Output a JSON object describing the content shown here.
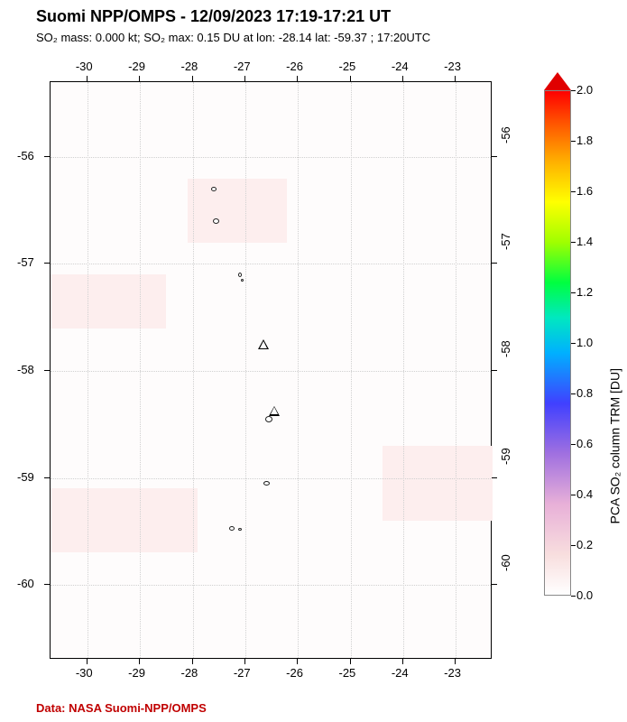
{
  "title": "Suomi NPP/OMPS - 12/09/2023 17:19-17:21 UT",
  "subtitle_html": "SO₂ mass: 0.000 kt; SO₂ max: 0.15 DU at lon: -28.14 lat: -59.37 ; 17:20UTC",
  "credit": "Data: NASA Suomi-NPP/OMPS",
  "plot": {
    "lon_min": -30.7,
    "lon_max": -22.3,
    "lat_min": -60.7,
    "lat_max": -55.3,
    "lon_ticks": [
      -30,
      -29,
      -28,
      -27,
      -26,
      -25,
      -24,
      -23
    ],
    "lat_ticks": [
      -56,
      -57,
      -58,
      -59,
      -60
    ],
    "grid_color": "#d0d0d0",
    "background": "#fefdfd",
    "pink_patches": [
      {
        "lon0": -30.7,
        "lon1": -28.5,
        "lat0": -57.1,
        "lat1": -57.6
      },
      {
        "lon0": -30.7,
        "lon1": -27.9,
        "lat0": -59.1,
        "lat1": -59.7
      },
      {
        "lon0": -28.1,
        "lon1": -26.2,
        "lat0": -56.2,
        "lat1": -56.8
      },
      {
        "lon0": -24.4,
        "lon1": -22.3,
        "lat0": -58.7,
        "lat1": -59.4
      }
    ],
    "volcanoes": [
      {
        "lon": -26.65,
        "lat": -57.8
      },
      {
        "lon": -26.45,
        "lat": -58.42
      }
    ],
    "islands": [
      {
        "lon": -27.6,
        "lat": -56.3,
        "w": 6,
        "h": 5
      },
      {
        "lon": -27.55,
        "lat": -56.6,
        "w": 7,
        "h": 6
      },
      {
        "lon": -27.1,
        "lat": -57.1,
        "w": 4,
        "h": 5
      },
      {
        "lon": -27.05,
        "lat": -57.15,
        "w": 3,
        "h": 3
      },
      {
        "lon": -26.55,
        "lat": -58.45,
        "w": 8,
        "h": 7
      },
      {
        "lon": -26.6,
        "lat": -59.05,
        "w": 7,
        "h": 5
      },
      {
        "lon": -27.25,
        "lat": -59.47,
        "w": 6,
        "h": 5
      },
      {
        "lon": -27.1,
        "lat": -59.48,
        "w": 4,
        "h": 3
      }
    ]
  },
  "colorbar": {
    "title": "PCA SO₂ column TRM [DU]",
    "min": 0.0,
    "max": 2.0,
    "ticks": [
      0.0,
      0.2,
      0.4,
      0.6,
      0.8,
      1.0,
      1.2,
      1.4,
      1.6,
      1.8,
      2.0
    ],
    "stops": [
      {
        "p": 0,
        "c": "#ffffff"
      },
      {
        "p": 8,
        "c": "#f8dede"
      },
      {
        "p": 18,
        "c": "#e8b0d8"
      },
      {
        "p": 28,
        "c": "#a070e0"
      },
      {
        "p": 38,
        "c": "#4040ff"
      },
      {
        "p": 48,
        "c": "#00b0ff"
      },
      {
        "p": 55,
        "c": "#00e8c0"
      },
      {
        "p": 62,
        "c": "#00ff40"
      },
      {
        "p": 70,
        "c": "#a0ff00"
      },
      {
        "p": 78,
        "c": "#ffff00"
      },
      {
        "p": 86,
        "c": "#ffb000"
      },
      {
        "p": 94,
        "c": "#ff5000"
      },
      {
        "p": 100,
        "c": "#ff0000"
      }
    ],
    "under_color": "#ffffff",
    "over_color": "#e00000"
  }
}
